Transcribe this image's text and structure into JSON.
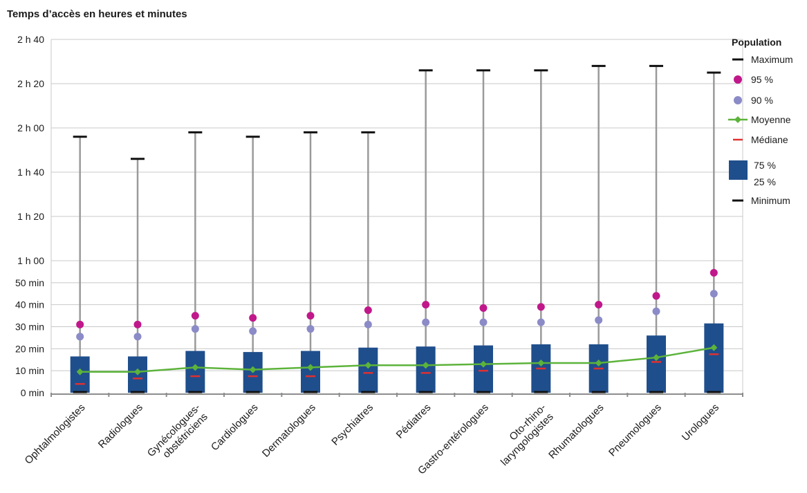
{
  "chart_data": {
    "type": "boxplot",
    "title": "Temps d’accès en heures et minutes",
    "y_unit": "minutes",
    "ylim": [
      0,
      160
    ],
    "y_ticks": [
      {
        "value": 0,
        "label": "0 min"
      },
      {
        "value": 10,
        "label": "10 min"
      },
      {
        "value": 20,
        "label": "20 min"
      },
      {
        "value": 30,
        "label": "30 min"
      },
      {
        "value": 40,
        "label": "40 min"
      },
      {
        "value": 50,
        "label": "50 min"
      },
      {
        "value": 60,
        "label": "1 h 00"
      },
      {
        "value": 80,
        "label": "1 h 20"
      },
      {
        "value": 100,
        "label": "1 h 40"
      },
      {
        "value": 120,
        "label": "2 h 00"
      },
      {
        "value": 140,
        "label": "2 h 20"
      },
      {
        "value": 160,
        "label": "2 h 40"
      }
    ],
    "categories": [
      {
        "label": [
          "Ophtalmologistes"
        ],
        "min": 0,
        "q1": 0,
        "median": 4,
        "mean": 9.5,
        "q3": 16.5,
        "p90": 25.5,
        "p95": 31,
        "max": 116
      },
      {
        "label": [
          "Radiologues"
        ],
        "min": 0,
        "q1": 0,
        "median": 6.5,
        "mean": 9.5,
        "q3": 16.5,
        "p90": 25.5,
        "p95": 31,
        "max": 106
      },
      {
        "label": [
          "Gynécologues-",
          "obstétriciens"
        ],
        "min": 0,
        "q1": 0,
        "median": 7.5,
        "mean": 11.5,
        "q3": 19,
        "p90": 29,
        "p95": 35,
        "max": 118
      },
      {
        "label": [
          "Cardiologues"
        ],
        "min": 0,
        "q1": 0,
        "median": 7.5,
        "mean": 10.5,
        "q3": 18.5,
        "p90": 28,
        "p95": 34,
        "max": 116
      },
      {
        "label": [
          "Dermatologues"
        ],
        "min": 0,
        "q1": 0,
        "median": 7.5,
        "mean": 11.5,
        "q3": 19,
        "p90": 29,
        "p95": 35,
        "max": 118
      },
      {
        "label": [
          "Psychiatres"
        ],
        "min": 0,
        "q1": 0,
        "median": 9,
        "mean": 12.5,
        "q3": 20.5,
        "p90": 31,
        "p95": 37.5,
        "max": 118
      },
      {
        "label": [
          "Pédiatres"
        ],
        "min": 0,
        "q1": 0,
        "median": 9,
        "mean": 12.5,
        "q3": 21,
        "p90": 32,
        "p95": 40,
        "max": 146
      },
      {
        "label": [
          "Gastro-entérologues"
        ],
        "min": 0,
        "q1": 0,
        "median": 10,
        "mean": 13,
        "q3": 21.5,
        "p90": 32,
        "p95": 38.5,
        "max": 146
      },
      {
        "label": [
          "Oto-rhino-",
          "laryngologistes"
        ],
        "min": 0,
        "q1": 0,
        "median": 11,
        "mean": 13.5,
        "q3": 22,
        "p90": 32,
        "p95": 39,
        "max": 146
      },
      {
        "label": [
          "Rhumatologues"
        ],
        "min": 0,
        "q1": 0,
        "median": 11,
        "mean": 13.5,
        "q3": 22,
        "p90": 33,
        "p95": 40,
        "max": 148
      },
      {
        "label": [
          "Pneumologues"
        ],
        "min": 0,
        "q1": 0,
        "median": 14,
        "mean": 16,
        "q3": 26,
        "p90": 37,
        "p95": 44,
        "max": 148
      },
      {
        "label": [
          "Urologues"
        ],
        "min": 0,
        "q1": 0,
        "median": 17.5,
        "mean": 20.5,
        "q3": 31.5,
        "p90": 45,
        "p95": 54.5,
        "max": 145
      }
    ],
    "legend": {
      "title": "Population",
      "items": [
        {
          "key": "max",
          "text": [
            "Maximum"
          ]
        },
        {
          "key": "p95",
          "text": [
            "95 %"
          ]
        },
        {
          "key": "p90",
          "text": [
            "90 %"
          ]
        },
        {
          "key": "mean",
          "text": [
            "Moyenne"
          ]
        },
        {
          "key": "median",
          "text": [
            "Médiane"
          ]
        },
        {
          "key": "box",
          "text": [
            "75 %",
            "25 %"
          ]
        },
        {
          "key": "min",
          "text": [
            "Minimum"
          ]
        }
      ],
      "position": "right"
    },
    "colors": {
      "box": "#1f4e8c",
      "whisker": "#9a9a9a",
      "cap": "#111111",
      "p95": "#c0188a",
      "p90": "#8b8bc8",
      "mean": "#5cb33a",
      "median": "#e03030",
      "grid": "#c8c8c8"
    },
    "grid": true
  }
}
